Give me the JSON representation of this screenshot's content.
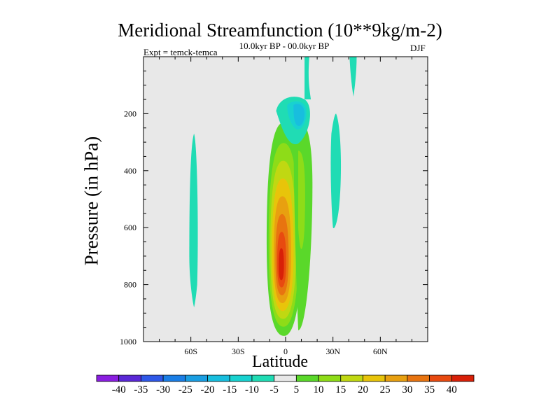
{
  "chart_data": {
    "type": "heatmap",
    "title": "Meridional Streamfunction (10**9kg/m-2)",
    "subtitle": "10.0kyr BP - 00.0kyr BP",
    "left_label": "Expt = temck-temca",
    "right_label": "DJF",
    "xlabel": "Latitude",
    "ylabel": "Pressure (in hPa)",
    "x_range": [
      -90,
      90
    ],
    "y_range": [
      0,
      1000
    ],
    "y_inverted": true,
    "x_ticks": [
      {
        "value": -60,
        "label": "60S"
      },
      {
        "value": -30,
        "label": "30S"
      },
      {
        "value": 0,
        "label": "0"
      },
      {
        "value": 30,
        "label": "30N"
      },
      {
        "value": 60,
        "label": "60N"
      }
    ],
    "y_ticks": [
      {
        "value": 200,
        "label": "200"
      },
      {
        "value": 400,
        "label": "400"
      },
      {
        "value": 600,
        "label": "600"
      },
      {
        "value": 800,
        "label": "800"
      },
      {
        "value": 1000,
        "label": "1000"
      }
    ],
    "colorbar": {
      "levels": [
        -40,
        -35,
        -30,
        -25,
        -20,
        -15,
        -10,
        -5,
        5,
        10,
        15,
        20,
        25,
        30,
        35,
        40
      ],
      "labels": [
        "-40",
        "-35",
        "-30",
        "-25",
        "-20",
        "-15",
        "-10",
        "-5",
        "5",
        "10",
        "15",
        "20",
        "25",
        "30",
        "35",
        "40"
      ],
      "colors": [
        "#8a1ee0",
        "#5a28d6",
        "#2e58e8",
        "#1a7ee6",
        "#1a9ee2",
        "#18bede",
        "#18d2d0",
        "#20dcb4",
        "#e8e8e8",
        "#5ad82a",
        "#8edc18",
        "#c0d812",
        "#e8c40a",
        "#e8a010",
        "#e87410",
        "#e84a10",
        "#d82008"
      ]
    },
    "features": [
      {
        "name": "max-positive-cell",
        "sign": "positive",
        "center_lat": -3,
        "center_p": 750,
        "peak_value": 40,
        "lat_extent": [
          -12,
          10
        ],
        "p_extent": [
          230,
          980
        ]
      },
      {
        "name": "negative-upper-cell",
        "sign": "negative",
        "center_lat": 6,
        "center_p": 200,
        "peak_value": -15,
        "lat_extent": [
          -5,
          15
        ],
        "p_extent": [
          120,
          310
        ]
      },
      {
        "name": "negative-60s-band",
        "sign": "negative",
        "center_lat": -57,
        "peak_value": -5,
        "lat_extent": [
          -61,
          -56
        ],
        "p_extent": [
          270,
          880
        ]
      },
      {
        "name": "negative-30n-band",
        "sign": "negative",
        "center_lat": 31,
        "peak_value": -5,
        "lat_extent": [
          28,
          36
        ],
        "p_extent": [
          200,
          610
        ]
      },
      {
        "name": "negative-top-strips",
        "sign": "negative",
        "center_lat": 43,
        "peak_value": -5,
        "lat_extent": [
          40,
          45
        ],
        "p_extent": [
          0,
          140
        ]
      }
    ]
  },
  "colors": {
    "background": "#e8e8e8",
    "axis": "#000000"
  }
}
